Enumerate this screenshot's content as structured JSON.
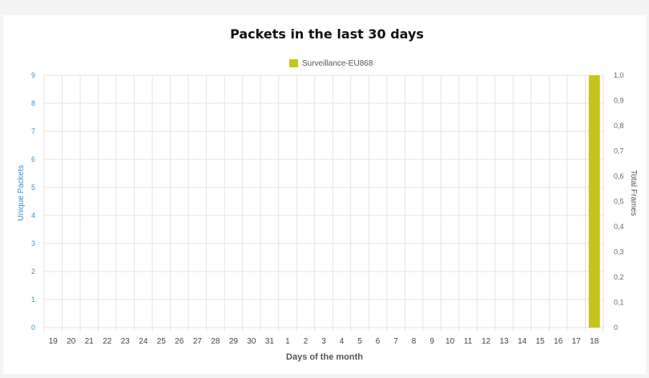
{
  "chart_data": {
    "type": "bar",
    "title": "Packets in the last 30 days",
    "xlabel": "Days of the month",
    "ylabel_left": "Unique Packets",
    "ylabel_right": "Total Frames",
    "categories": [
      "19",
      "20",
      "21",
      "22",
      "23",
      "24",
      "25",
      "26",
      "27",
      "28",
      "29",
      "30",
      "31",
      "1",
      "2",
      "3",
      "4",
      "5",
      "6",
      "7",
      "8",
      "9",
      "10",
      "11",
      "12",
      "13",
      "14",
      "15",
      "16",
      "17",
      "18"
    ],
    "series": [
      {
        "name": "Surveillance-EU868",
        "color": "#c5c51b",
        "values": [
          0,
          0,
          0,
          0,
          0,
          0,
          0,
          0,
          0,
          0,
          0,
          0,
          0,
          0,
          0,
          0,
          0,
          0,
          0,
          0,
          0,
          0,
          0,
          0,
          0,
          0,
          0,
          0,
          0,
          0,
          9
        ]
      }
    ],
    "ylim_left": [
      0,
      9
    ],
    "yticks_left": [
      "0",
      "1",
      "2",
      "3",
      "4",
      "5",
      "6",
      "7",
      "8",
      "9"
    ],
    "ylim_right": [
      0,
      1
    ],
    "yticks_right": [
      "0",
      "0,1",
      "0,2",
      "0,3",
      "0,4",
      "0,5",
      "0,6",
      "0,7",
      "0,8",
      "0,9",
      "1,0"
    ],
    "grid": true,
    "legend_position": "top-center"
  }
}
